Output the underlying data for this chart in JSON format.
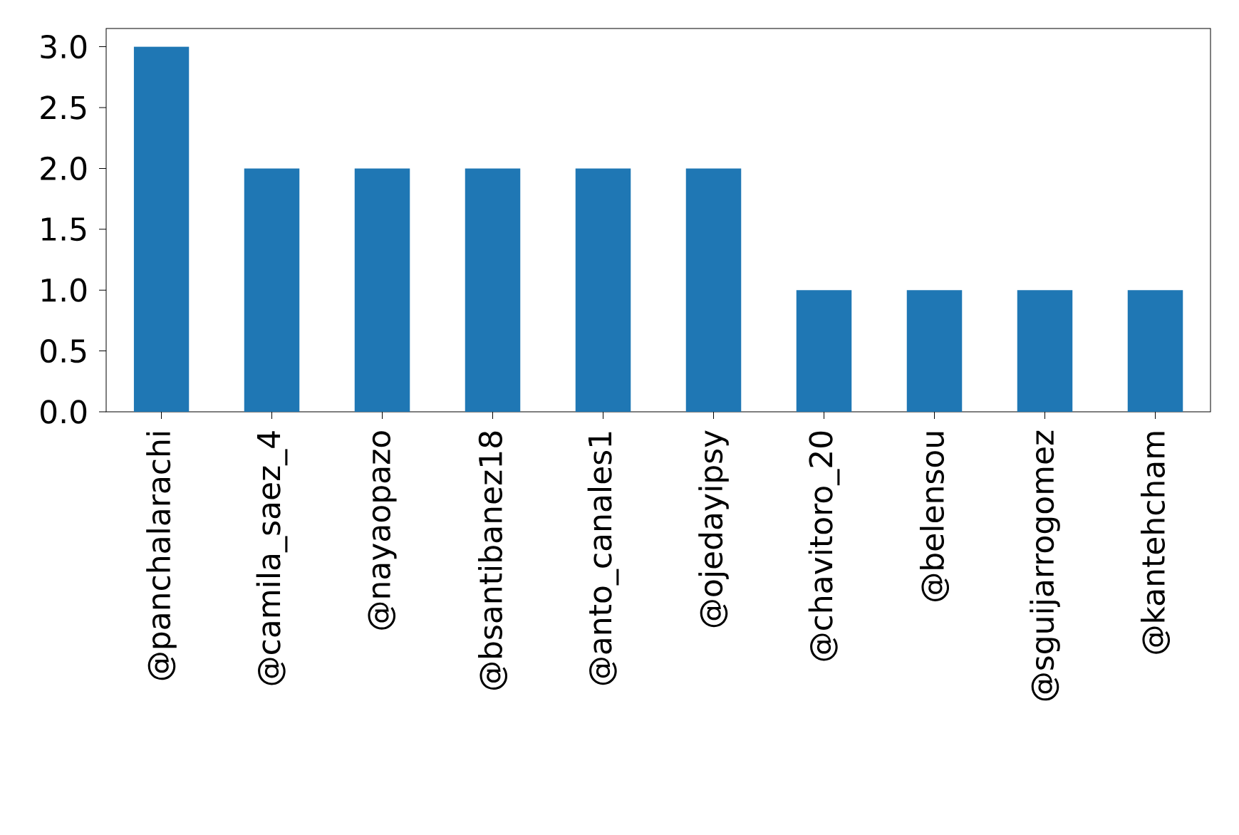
{
  "chart_data": {
    "type": "bar",
    "categories": [
      "@panchalarachi",
      "@camila_saez_4",
      "@nayaopazo",
      "@bsantibanez18",
      "@anto_canales1",
      "@ojedayipsy",
      "@chavitoro_20",
      "@belensou",
      "@sguijarrogomez",
      "@kantehcham"
    ],
    "values": [
      3,
      2,
      2,
      2,
      2,
      2,
      1,
      1,
      1,
      1
    ],
    "color": "#1f77b4",
    "ylim": [
      0,
      3.15
    ],
    "yticks": [
      {
        "value": 0,
        "label": "0.0"
      },
      {
        "value": 0.5,
        "label": "0.5"
      },
      {
        "value": 1,
        "label": "1.0"
      },
      {
        "value": 1.5,
        "label": "1.5"
      },
      {
        "value": 2,
        "label": "2.0"
      },
      {
        "value": 2.5,
        "label": "2.5"
      },
      {
        "value": 3,
        "label": "3.0"
      }
    ]
  }
}
